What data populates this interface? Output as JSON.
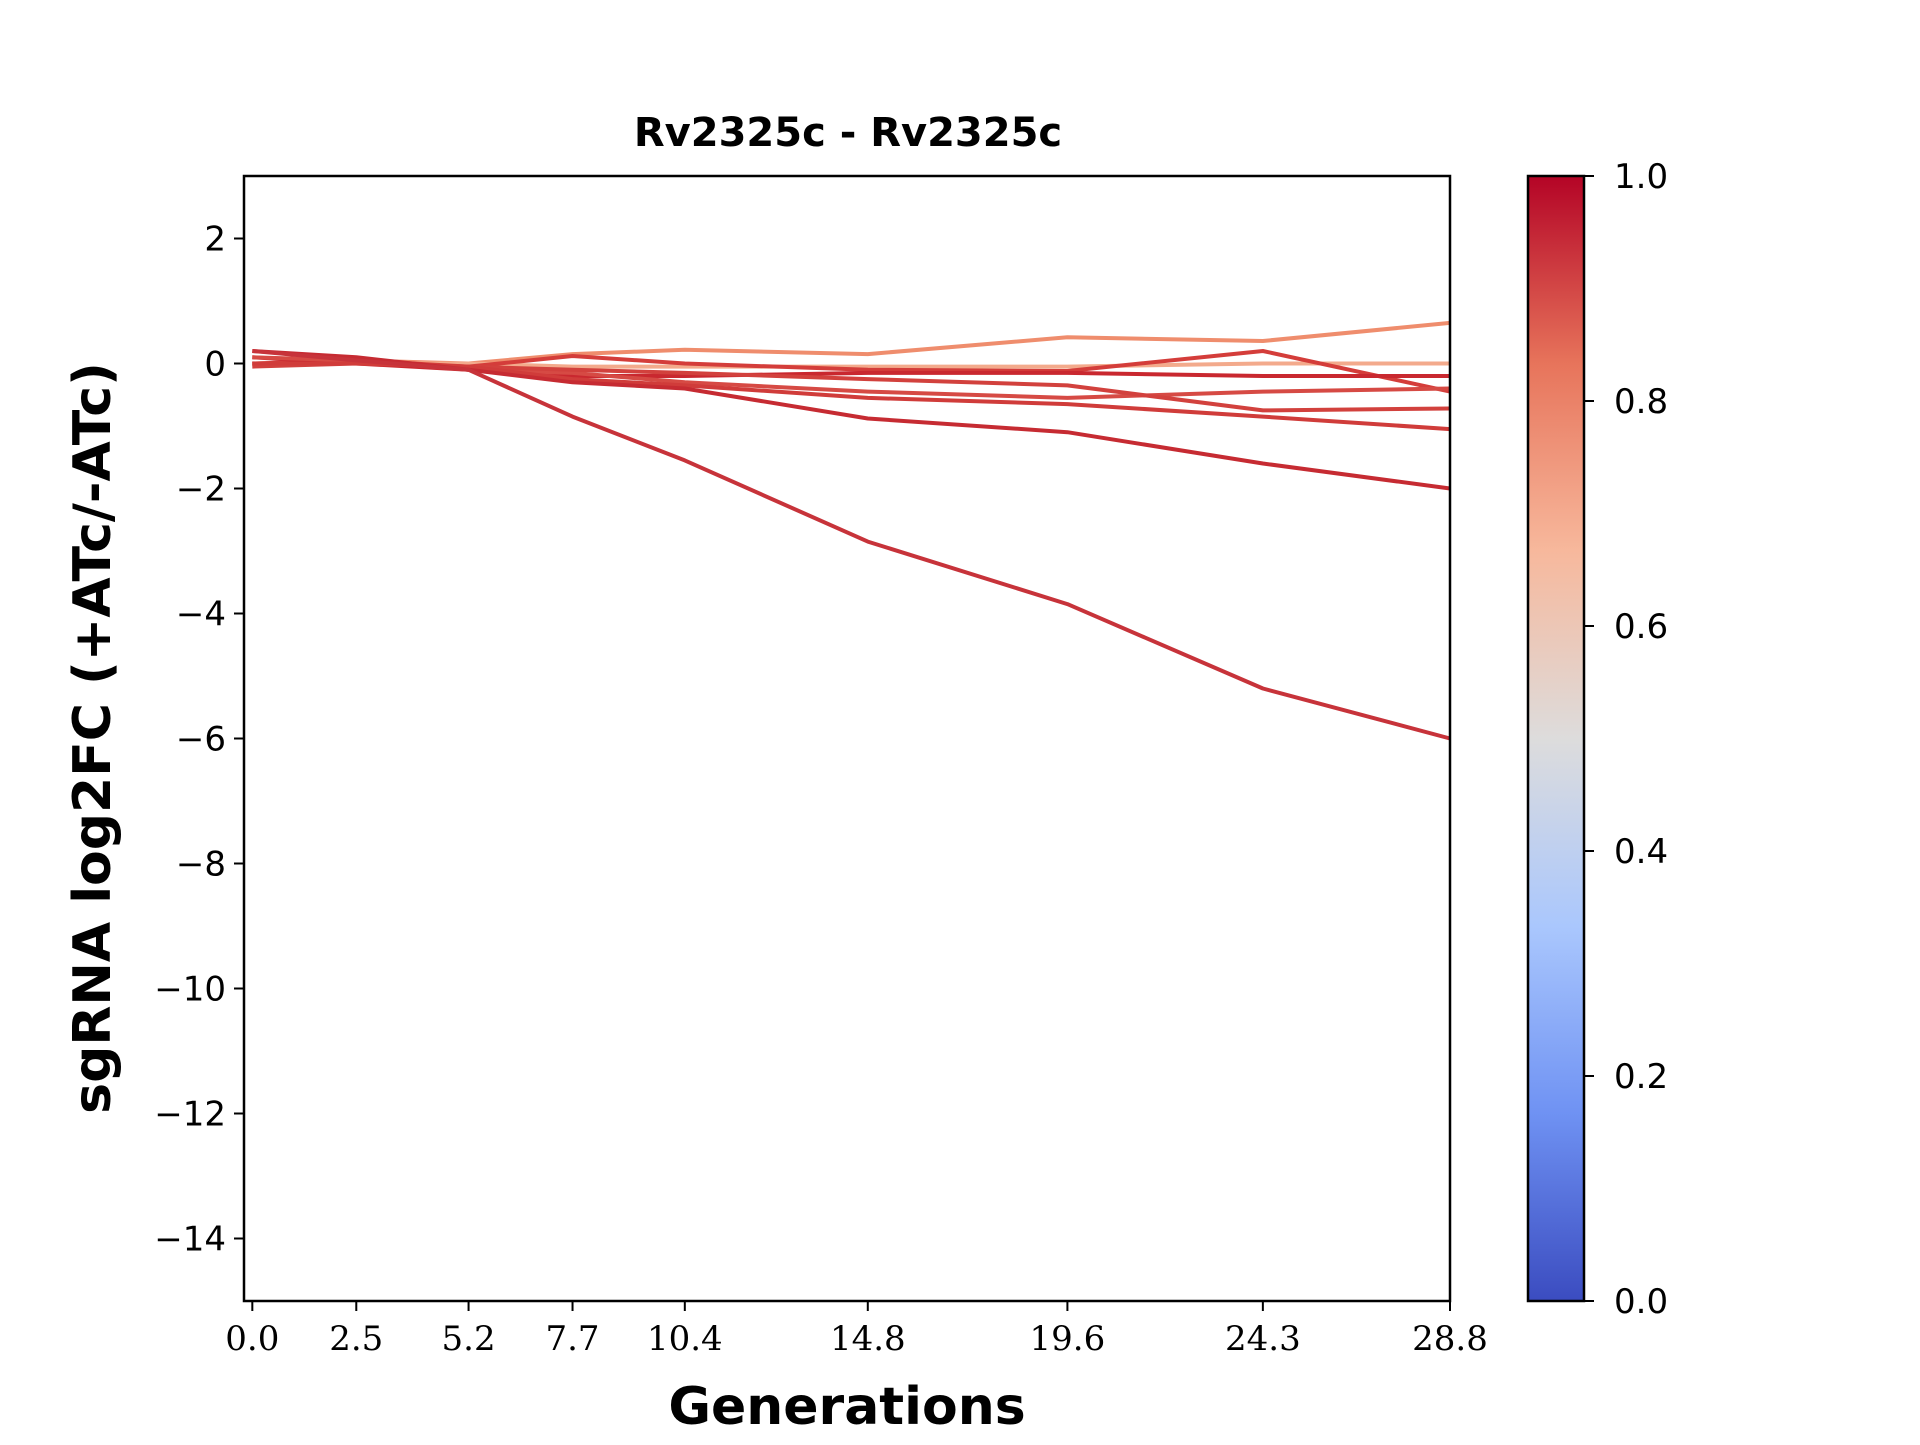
{
  "chart_data": {
    "type": "line",
    "title": "Rv2325c - Rv2325c",
    "xlabel": "Generations",
    "ylabel": "sgRNA log2FC (+ATc/-ATc)",
    "x": [
      0.0,
      2.5,
      5.2,
      7.7,
      10.4,
      14.8,
      19.6,
      24.3,
      28.8
    ],
    "x_tick_labels": [
      "0.0",
      "2.5",
      "5.2",
      "7.7",
      "10.4",
      "14.8",
      "19.6",
      "24.3",
      "28.8"
    ],
    "xlim": [
      -0.2,
      28.8
    ],
    "ylim": [
      -15,
      3
    ],
    "y_ticks": [
      2,
      0,
      -2,
      -4,
      -6,
      -8,
      -10,
      -12,
      -14
    ],
    "y_tick_labels": [
      "2",
      "0",
      "−2",
      "−4",
      "−6",
      "−8",
      "−10",
      "−12",
      "−14"
    ],
    "grid": false,
    "series": [
      {
        "values": [
          0.0,
          0.05,
          0.0,
          0.15,
          0.22,
          0.15,
          0.42,
          0.36,
          0.65
        ],
        "color": "#ef8d6d"
      },
      {
        "values": [
          0.0,
          0.0,
          0.0,
          -0.05,
          -0.05,
          -0.05,
          -0.05,
          0.0,
          0.0
        ],
        "color": "#f3aa8c"
      },
      {
        "values": [
          0.0,
          0.05,
          -0.05,
          0.12,
          0.0,
          -0.1,
          -0.12,
          0.2,
          -0.45
        ],
        "color": "#d43d3a"
      },
      {
        "values": [
          0.1,
          0.0,
          -0.1,
          -0.2,
          -0.2,
          -0.15,
          -0.15,
          -0.2,
          -0.2
        ],
        "color": "#c9282f"
      },
      {
        "values": [
          0.1,
          0.05,
          -0.1,
          -0.15,
          -0.3,
          -0.45,
          -0.55,
          -0.45,
          -0.4
        ],
        "color": "#d64a44"
      },
      {
        "values": [
          -0.05,
          0.0,
          -0.05,
          -0.1,
          -0.15,
          -0.25,
          -0.35,
          -0.75,
          -0.72
        ],
        "color": "#d2413d"
      },
      {
        "values": [
          0.0,
          0.0,
          -0.05,
          -0.25,
          -0.35,
          -0.55,
          -0.65,
          -0.85,
          -1.05
        ],
        "color": "#d03c3a"
      },
      {
        "values": [
          0.2,
          0.1,
          -0.1,
          -0.3,
          -0.4,
          -0.88,
          -1.1,
          -1.6,
          -2.0
        ],
        "color": "#c62b32"
      },
      {
        "values": [
          0.2,
          0.05,
          -0.1,
          -0.85,
          -1.55,
          -2.85,
          -3.85,
          -5.2,
          -6.0
        ],
        "color": "#c7333a"
      }
    ],
    "colorbar": {
      "range": [
        0.0,
        1.0
      ],
      "tick_labels": [
        "0.0",
        "0.2",
        "0.4",
        "0.6",
        "0.8",
        "1.0"
      ],
      "colormap": "coolwarm",
      "stops": [
        "#3b4cc0",
        "#6f92f3",
        "#aac7fd",
        "#dddcdc",
        "#f7b89c",
        "#e7745b",
        "#b40426"
      ]
    }
  }
}
